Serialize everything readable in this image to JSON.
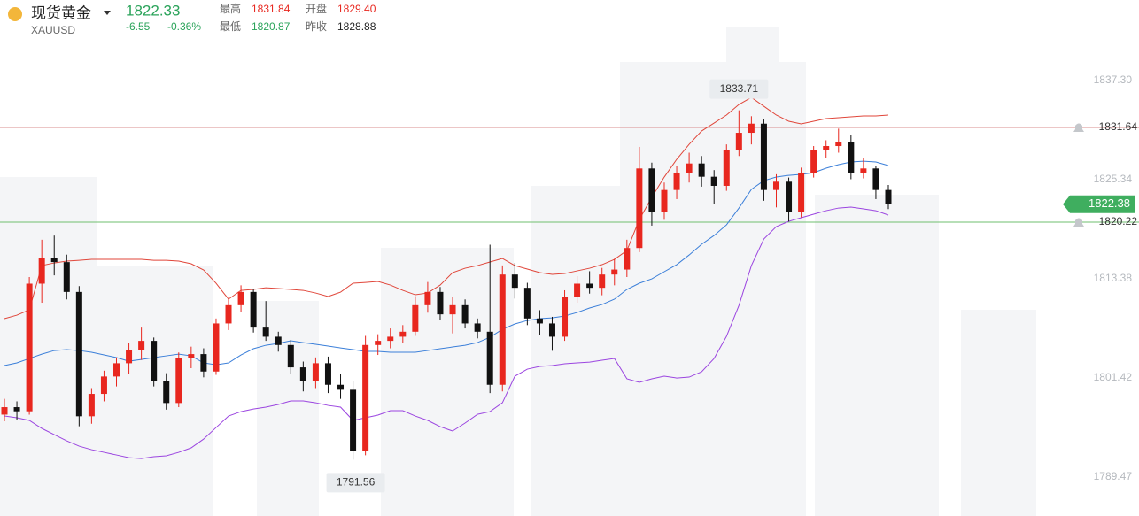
{
  "header": {
    "name": "现货黄金",
    "symbol": "XAUUSD",
    "price": "1822.33",
    "change": "-6.55",
    "change_pct": "-0.36%",
    "stats": [
      {
        "label": "最高",
        "value": "1831.84"
      },
      {
        "label": "开盘",
        "value": "1829.40"
      },
      {
        "label": "最低",
        "value": "1820.87"
      },
      {
        "label": "昨收",
        "value": "1828.88"
      }
    ]
  },
  "chart_data": {
    "type": "candlestick",
    "ylim": [
      1784.77,
      1847.02
    ],
    "yticks": [
      {
        "value": 1837.3,
        "label": "1837.30"
      },
      1825.34,
      1813.38,
      1801.42,
      1789.47
    ],
    "up_color": "#e8271f",
    "down_color": "#111111",
    "candles": [
      [
        1797.0,
        1798.9,
        1796.2,
        1797.9
      ],
      [
        1797.9,
        1798.6,
        1796.4,
        1797.4
      ],
      [
        1797.4,
        1813.6,
        1797.0,
        1812.8
      ],
      [
        1812.8,
        1818.1,
        1810.5,
        1815.9
      ],
      [
        1815.9,
        1818.6,
        1813.8,
        1815.4
      ],
      [
        1815.4,
        1816.3,
        1810.9,
        1811.8
      ],
      [
        1811.8,
        1812.5,
        1795.6,
        1796.8
      ],
      [
        1796.8,
        1800.2,
        1795.9,
        1799.5
      ],
      [
        1799.5,
        1802.3,
        1798.6,
        1801.6
      ],
      [
        1801.6,
        1803.9,
        1800.4,
        1803.2
      ],
      [
        1803.2,
        1805.6,
        1801.9,
        1804.8
      ],
      [
        1804.8,
        1807.5,
        1803.6,
        1805.9
      ],
      [
        1805.9,
        1806.3,
        1800.4,
        1801.1
      ],
      [
        1801.1,
        1802.0,
        1797.6,
        1798.4
      ],
      [
        1798.4,
        1804.5,
        1797.9,
        1803.8
      ],
      [
        1803.8,
        1805.2,
        1802.6,
        1804.3
      ],
      [
        1804.3,
        1805.0,
        1801.5,
        1802.2
      ],
      [
        1802.2,
        1808.6,
        1801.8,
        1808.0
      ],
      [
        1808.0,
        1811.0,
        1807.2,
        1810.2
      ],
      [
        1810.2,
        1812.6,
        1809.4,
        1811.8
      ],
      [
        1811.8,
        1812.1,
        1806.9,
        1807.5
      ],
      [
        1807.5,
        1810.7,
        1805.9,
        1806.4
      ],
      [
        1806.4,
        1807.0,
        1804.6,
        1805.4
      ],
      [
        1805.4,
        1806.0,
        1801.9,
        1802.7
      ],
      [
        1802.7,
        1803.4,
        1799.8,
        1801.1
      ],
      [
        1801.1,
        1803.9,
        1800.2,
        1803.2
      ],
      [
        1803.2,
        1804.0,
        1799.6,
        1800.6
      ],
      [
        1800.6,
        1801.9,
        1798.9,
        1800.0
      ],
      [
        1800.0,
        1801.1,
        1791.56,
        1792.6
      ],
      [
        1792.6,
        1806.5,
        1792.1,
        1805.4
      ],
      [
        1805.4,
        1806.7,
        1804.2,
        1805.9
      ],
      [
        1805.9,
        1807.4,
        1805.0,
        1806.4
      ],
      [
        1806.4,
        1807.8,
        1805.6,
        1807.0
      ],
      [
        1807.0,
        1811.3,
        1806.5,
        1810.2
      ],
      [
        1810.2,
        1813.0,
        1809.3,
        1811.8
      ],
      [
        1811.8,
        1812.4,
        1808.4,
        1809.1
      ],
      [
        1809.1,
        1811.2,
        1806.8,
        1810.2
      ],
      [
        1810.2,
        1810.9,
        1807.4,
        1808.0
      ],
      [
        1808.0,
        1808.6,
        1806.2,
        1807.0
      ],
      [
        1807.0,
        1817.5,
        1799.6,
        1800.6
      ],
      [
        1800.6,
        1815.0,
        1799.8,
        1813.9
      ],
      [
        1813.9,
        1815.3,
        1811.0,
        1812.3
      ],
      [
        1812.3,
        1812.9,
        1807.8,
        1808.6
      ],
      [
        1808.6,
        1809.6,
        1806.6,
        1808.0
      ],
      [
        1808.0,
        1808.8,
        1804.7,
        1806.4
      ],
      [
        1806.4,
        1812.0,
        1805.9,
        1811.2
      ],
      [
        1811.2,
        1813.7,
        1810.5,
        1812.8
      ],
      [
        1812.8,
        1814.3,
        1811.6,
        1812.3
      ],
      [
        1812.3,
        1814.7,
        1811.4,
        1813.9
      ],
      [
        1813.9,
        1815.8,
        1812.6,
        1814.5
      ],
      [
        1814.5,
        1818.1,
        1813.6,
        1817.1
      ],
      [
        1817.1,
        1829.3,
        1816.6,
        1826.7
      ],
      [
        1826.7,
        1827.4,
        1819.8,
        1821.4
      ],
      [
        1821.4,
        1825.0,
        1820.5,
        1824.1
      ],
      [
        1824.1,
        1827.0,
        1823.0,
        1826.2
      ],
      [
        1826.2,
        1828.6,
        1825.0,
        1827.3
      ],
      [
        1827.3,
        1828.2,
        1824.5,
        1825.7
      ],
      [
        1825.7,
        1826.5,
        1822.4,
        1824.6
      ],
      [
        1824.6,
        1829.6,
        1824.0,
        1828.9
      ],
      [
        1828.9,
        1833.71,
        1828.2,
        1831.0
      ],
      [
        1831.0,
        1833.0,
        1829.6,
        1832.1
      ],
      [
        1832.1,
        1832.6,
        1822.8,
        1824.1
      ],
      [
        1824.1,
        1826.0,
        1822.0,
        1825.1
      ],
      [
        1825.1,
        1825.6,
        1820.3,
        1821.4
      ],
      [
        1821.4,
        1826.8,
        1820.8,
        1826.2
      ],
      [
        1826.2,
        1829.4,
        1825.6,
        1828.9
      ],
      [
        1828.9,
        1830.1,
        1828.0,
        1829.4
      ],
      [
        1829.4,
        1831.5,
        1828.6,
        1829.9
      ],
      [
        1829.9,
        1830.7,
        1825.4,
        1826.2
      ],
      [
        1826.2,
        1828.0,
        1825.5,
        1826.7
      ],
      [
        1826.7,
        1827.0,
        1823.0,
        1824.1
      ],
      [
        1824.1,
        1824.7,
        1821.8,
        1822.38
      ]
    ],
    "bands": [
      {
        "color": "#e0463a",
        "values": [
          1808.58,
          1809.0,
          1809.64,
          1814.98,
          1815.3,
          1815.52,
          1815.62,
          1815.73,
          1815.73,
          1815.73,
          1815.73,
          1815.73,
          1815.62,
          1815.62,
          1815.52,
          1815.2,
          1814.45,
          1812.85,
          1810.93,
          1811.99,
          1812.1,
          1812.31,
          1812.21,
          1812.1,
          1811.99,
          1811.67,
          1811.25,
          1811.78,
          1812.85,
          1812.95,
          1813.06,
          1812.63,
          1811.99,
          1811.46,
          1811.67,
          1812.63,
          1814.13,
          1814.66,
          1814.98,
          1815.41,
          1815.84,
          1814.98,
          1814.56,
          1814.13,
          1813.92,
          1814.02,
          1814.34,
          1814.66,
          1815.09,
          1815.73,
          1816.8,
          1820.54,
          1823.21,
          1825.66,
          1827.8,
          1829.61,
          1831.21,
          1832.17,
          1833.14,
          1834.42,
          1835.27,
          1834.2,
          1833.14,
          1832.39,
          1832.07,
          1832.39,
          1832.71,
          1832.82,
          1832.92,
          1833.03,
          1833.03,
          1833.14
        ]
      },
      {
        "color": "#3b7fd9",
        "values": [
          1802.92,
          1803.24,
          1803.77,
          1804.3,
          1804.73,
          1804.84,
          1804.73,
          1804.52,
          1804.2,
          1803.88,
          1803.45,
          1803.66,
          1803.88,
          1804.09,
          1804.3,
          1804.09,
          1803.24,
          1803.02,
          1803.24,
          1804.2,
          1804.95,
          1805.37,
          1805.59,
          1805.91,
          1805.69,
          1805.48,
          1805.27,
          1805.05,
          1804.84,
          1804.63,
          1804.63,
          1804.52,
          1804.52,
          1804.52,
          1804.73,
          1804.95,
          1805.16,
          1805.37,
          1805.69,
          1806.33,
          1807.29,
          1807.94,
          1808.36,
          1808.58,
          1808.68,
          1808.9,
          1809.32,
          1809.86,
          1810.28,
          1810.93,
          1812.1,
          1812.85,
          1813.38,
          1814.24,
          1815.09,
          1816.26,
          1817.55,
          1818.61,
          1819.89,
          1821.92,
          1824.17,
          1825.23,
          1825.66,
          1825.87,
          1825.98,
          1826.19,
          1826.73,
          1827.16,
          1827.48,
          1827.58,
          1827.48,
          1827.05
        ]
      },
      {
        "color": "#9b45e0",
        "values": [
          1796.83,
          1796.62,
          1796.3,
          1795.34,
          1794.59,
          1793.84,
          1793.2,
          1792.77,
          1792.45,
          1792.13,
          1791.81,
          1791.7,
          1791.92,
          1792.03,
          1792.45,
          1792.99,
          1794.05,
          1795.44,
          1796.83,
          1797.36,
          1797.68,
          1797.9,
          1798.22,
          1798.65,
          1798.65,
          1798.43,
          1798.11,
          1797.9,
          1796.3,
          1796.62,
          1796.94,
          1797.47,
          1797.47,
          1796.83,
          1796.3,
          1795.55,
          1795.02,
          1795.98,
          1797.04,
          1797.36,
          1798.43,
          1801.64,
          1802.49,
          1802.81,
          1802.92,
          1803.13,
          1803.24,
          1803.34,
          1803.56,
          1803.77,
          1801.32,
          1800.89,
          1801.32,
          1801.64,
          1801.42,
          1801.53,
          1802.17,
          1803.77,
          1806.44,
          1810.18,
          1814.98,
          1818.19,
          1819.68,
          1820.32,
          1820.75,
          1821.18,
          1821.6,
          1821.92,
          1822.03,
          1821.82,
          1821.6,
          1821.07
        ]
      }
    ],
    "hlines": [
      {
        "value": 1831.64,
        "color": "#d98c8c"
      },
      {
        "value": 1820.22,
        "color": "#6fbf6f"
      }
    ],
    "last_color": "#3fae5f"
  }
}
